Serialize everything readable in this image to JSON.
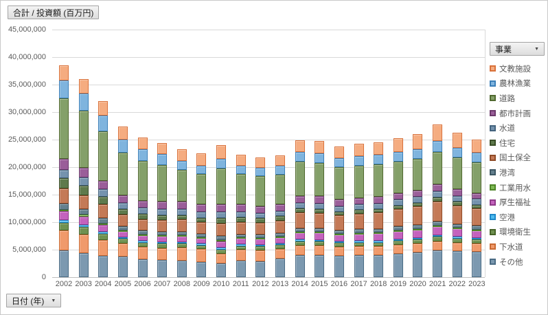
{
  "pivot_buttons": {
    "value_field": "合計 / 投資額 (百万円)",
    "series_field": "事業",
    "axis_field": "日付 (年)",
    "dropdown_glyph": "▼"
  },
  "y_axis": {
    "tick_labels": [
      "0",
      "5,000,000",
      "10,000,000",
      "15,000,000",
      "20,000,000",
      "25,000,000",
      "30,000,000",
      "35,000,000",
      "40,000,000",
      "45,000,000"
    ],
    "max": 45000000,
    "step": 5000000
  },
  "chart_data": {
    "type": "bar",
    "stacked": true,
    "title": "合計 / 投資額 (百万円)",
    "xlabel": "日付 (年)",
    "ylabel": "投資額 (百万円)",
    "ylim": [
      0,
      45000000
    ],
    "grid": true,
    "legend_position": "right",
    "legend_title": "事業",
    "categories": [
      2002,
      2003,
      2004,
      2005,
      2006,
      2007,
      2008,
      2009,
      2010,
      2011,
      2012,
      2013,
      2014,
      2015,
      2016,
      2017,
      2018,
      2019,
      2020,
      2021,
      2022,
      2023
    ],
    "series": [
      {
        "name": "文教施設",
        "fill": "#f5ac80",
        "border": "#d9713a",
        "values": [
          2750000,
          2650000,
          2600000,
          2300000,
          2100000,
          2000000,
          2200000,
          2200000,
          2400000,
          1900000,
          1800000,
          1900000,
          2200000,
          2300000,
          2200000,
          2200000,
          2300000,
          2400000,
          2700000,
          3000000,
          2700000,
          2400000
        ]
      },
      {
        "name": "農林漁業",
        "fill": "#7fb4de",
        "border": "#3c7fb8",
        "values": [
          3250000,
          3050000,
          2900000,
          2400000,
          2200000,
          2000000,
          1600000,
          1600000,
          1750000,
          1500000,
          1500000,
          1600000,
          1700000,
          1700000,
          1600000,
          1700000,
          1700000,
          1800000,
          1800000,
          1900000,
          1800000,
          1700000
        ]
      },
      {
        "name": "道路",
        "fill": "#84a069",
        "border": "#50682f",
        "values": [
          11000000,
          10450000,
          9000000,
          7800000,
          7200000,
          6700000,
          5700000,
          5500000,
          6500000,
          5600000,
          5500000,
          5300000,
          6200000,
          6100000,
          5900000,
          5900000,
          5900000,
          5700000,
          5700000,
          5900000,
          5700000,
          5600000
        ]
      },
      {
        "name": "都市計画",
        "fill": "#9a5e99",
        "border": "#6c3a6b",
        "values": [
          1900000,
          1750000,
          1500000,
          1300000,
          1300000,
          1350000,
          1400000,
          1350000,
          1450000,
          1300000,
          1250000,
          1250000,
          1300000,
          1300000,
          1200000,
          1200000,
          1200000,
          1200000,
          1200000,
          1300000,
          1200000,
          1100000
        ]
      },
      {
        "name": "水道",
        "fill": "#7593ae",
        "border": "#44637d",
        "values": [
          1500000,
          1450000,
          1350000,
          1150000,
          1100000,
          1100000,
          1100000,
          1050000,
          1050000,
          1000000,
          950000,
          950000,
          1000000,
          1000000,
          1000000,
          1000000,
          1000000,
          1050000,
          1100000,
          1150000,
          1100000,
          1050000
        ]
      },
      {
        "name": "住宅",
        "fill": "#5e7a4c",
        "border": "#394d27",
        "values": [
          1900000,
          1700000,
          1400000,
          1000000,
          950000,
          900000,
          850000,
          800000,
          1000000,
          900000,
          800000,
          800000,
          800000,
          750000,
          700000,
          700000,
          650000,
          650000,
          650000,
          700000,
          650000,
          600000
        ]
      },
      {
        "name": "国土保全",
        "fill": "#c47a57",
        "border": "#8f4a26",
        "values": [
          2750000,
          2600000,
          2500000,
          2100000,
          2050000,
          2100000,
          2200000,
          2100000,
          2300000,
          2200000,
          2200000,
          2300000,
          2800000,
          2800000,
          2700000,
          2800000,
          3000000,
          3200000,
          3400000,
          3600000,
          3400000,
          3200000
        ]
      },
      {
        "name": "港湾",
        "fill": "#64808e",
        "border": "#3c5663",
        "values": [
          1100000,
          1000000,
          900000,
          750000,
          700000,
          650000,
          600000,
          600000,
          800000,
          600000,
          600000,
          600000,
          650000,
          650000,
          600000,
          650000,
          650000,
          700000,
          700000,
          750000,
          700000,
          700000
        ]
      },
      {
        "name": "工業用水",
        "fill": "#7fba55",
        "border": "#4e8527",
        "values": [
          300000,
          280000,
          250000,
          200000,
          180000,
          160000,
          150000,
          150000,
          150000,
          130000,
          120000,
          120000,
          130000,
          130000,
          120000,
          120000,
          120000,
          130000,
          130000,
          150000,
          130000,
          120000
        ]
      },
      {
        "name": "厚生福祉",
        "fill": "#c462bd",
        "border": "#8e3a88",
        "values": [
          1600000,
          1500000,
          1300000,
          1100000,
          1050000,
          1050000,
          1100000,
          1050000,
          1150000,
          1100000,
          1100000,
          1150000,
          1300000,
          1350000,
          1300000,
          1350000,
          1400000,
          1450000,
          1500000,
          1600000,
          1500000,
          1400000
        ]
      },
      {
        "name": "空港",
        "fill": "#4fbbef",
        "border": "#1e88c9",
        "values": [
          500000,
          450000,
          350000,
          300000,
          280000,
          300000,
          300000,
          300000,
          400000,
          300000,
          250000,
          250000,
          280000,
          280000,
          250000,
          280000,
          300000,
          300000,
          300000,
          300000,
          300000,
          300000
        ]
      },
      {
        "name": "環境衛生",
        "fill": "#6f9150",
        "border": "#466328",
        "values": [
          1400000,
          1300000,
          1100000,
          850000,
          800000,
          800000,
          700000,
          700000,
          750000,
          700000,
          700000,
          700000,
          740000,
          740000,
          700000,
          700000,
          700000,
          720000,
          720000,
          800000,
          750000,
          700000
        ]
      },
      {
        "name": "下水道",
        "fill": "#f09a6b",
        "border": "#c96a33",
        "values": [
          3600000,
          3400000,
          2900000,
          2400000,
          2300000,
          2200000,
          2400000,
          2400000,
          1700000,
          1970000,
          2030000,
          1780000,
          1800000,
          1700000,
          1630000,
          1600000,
          1580000,
          1600000,
          1600000,
          1650000,
          1570000,
          1530000
        ]
      },
      {
        "name": "その他",
        "fill": "#7c99b0",
        "border": "#4a6b84",
        "values": [
          4900000,
          4400000,
          3900000,
          3700000,
          3200000,
          3100000,
          3000000,
          2700000,
          2550000,
          3000000,
          2900000,
          3400000,
          4000000,
          4000000,
          3900000,
          4000000,
          4000000,
          4300000,
          4500000,
          4900000,
          4700000,
          4600000
        ]
      }
    ]
  },
  "layout_note": "stack order bottom-to-top is reverse of series list"
}
